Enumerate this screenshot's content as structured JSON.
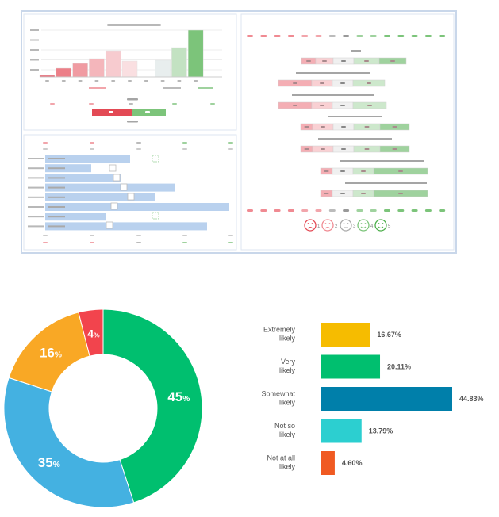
{
  "dashboard": {
    "panel_border": "#c9d7ea",
    "red": "#e8616e",
    "green": "#7cc47a",
    "blue": "#b9d1ee",
    "gray": "#b8b8b8",
    "mood_scale": [
      "1",
      "2",
      "3",
      "4",
      "5"
    ]
  },
  "chart_data": [
    {
      "type": "pie",
      "variant": "donut",
      "values": [
        45,
        35,
        16,
        4
      ],
      "labels": [
        "45",
        "35",
        "16",
        "4"
      ],
      "unit": "%",
      "colors": [
        "#00bf6f",
        "#44b1e1",
        "#f9a825",
        "#f2444d"
      ]
    },
    {
      "type": "bar",
      "orientation": "horizontal",
      "categories": [
        [
          "Extremely",
          "likely"
        ],
        [
          "Very",
          "likely"
        ],
        [
          "Somewhat",
          "likely"
        ],
        [
          "Not so",
          "likely"
        ],
        [
          "Not at all",
          "likely"
        ]
      ],
      "values": [
        16.67,
        20.11,
        44.83,
        13.79,
        4.6
      ],
      "value_labels": [
        "16.67%",
        "20.11%",
        "44.83%",
        "13.79%",
        "4.60%"
      ],
      "colors": [
        "#f6bc00",
        "#00bf6f",
        "#007faa",
        "#2ccfd0",
        "#f05a22"
      ],
      "xlim": [
        0,
        50
      ]
    }
  ]
}
